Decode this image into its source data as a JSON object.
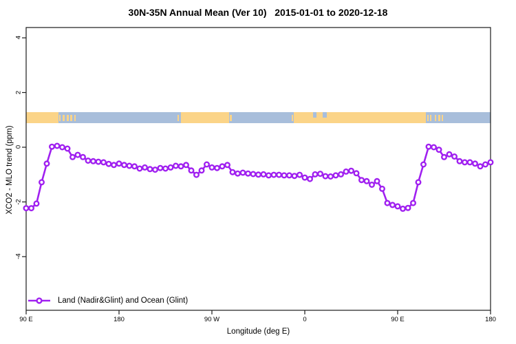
{
  "title": "30N-35N Annual Mean (Ver 10)   2015-01-01 to 2020-12-18",
  "axes": {
    "x_label": "Longitude (deg E)",
    "y_label": "XCO2 - MLO trend (ppm)"
  },
  "legend": {
    "label": "Land (Nadir&Glint) and Ocean (Glint)"
  },
  "colors": {
    "series": "#A020F0",
    "marker_fill": "#ffffff",
    "land": "#FBD488",
    "ocean": "#A8BEDB",
    "axis": "#1a1a1a",
    "text": "#000000"
  },
  "chart_data": {
    "type": "line",
    "title": "30N-35N Annual Mean (Ver 10)   2015-01-01 to 2020-12-18",
    "xlabel": "Longitude (deg E)",
    "ylabel": "XCO2 - MLO trend (ppm)",
    "x_range": [
      90,
      540
    ],
    "ylim": [
      -5.95,
      4.4
    ],
    "x_tick_deg": [
      90,
      180,
      270,
      360,
      450,
      540
    ],
    "x_tick_labels": [
      "90 E",
      "180",
      "90 W",
      "0",
      "90 E",
      "180"
    ],
    "y_tick_values": [
      4,
      2,
      0,
      -2,
      -4
    ],
    "y_tick_labels": [
      "4",
      "2",
      "0",
      "-2",
      "-4"
    ],
    "grid": false,
    "legend_position": "bottom-left-inside",
    "series": [
      {
        "name": "Land (Nadir&Glint) and Ocean (Glint)",
        "x_deg_east_continuous": [
          90,
          95,
          100,
          105,
          110,
          115,
          120,
          125,
          130,
          135,
          140,
          145,
          150,
          155,
          160,
          165,
          170,
          175,
          180,
          185,
          190,
          195,
          200,
          205,
          210,
          215,
          220,
          225,
          230,
          235,
          240,
          245,
          250,
          255,
          260,
          265,
          270,
          275,
          280,
          285,
          290,
          295,
          300,
          305,
          310,
          315,
          320,
          325,
          330,
          335,
          340,
          345,
          350,
          355,
          360,
          365,
          370,
          375,
          380,
          385,
          390,
          395,
          400,
          405,
          410,
          415,
          420,
          425,
          430,
          435,
          440,
          445,
          450,
          455,
          460,
          465,
          470,
          475,
          480,
          485,
          490,
          495,
          500,
          505,
          510,
          515,
          520,
          525,
          530,
          535,
          540
        ],
        "values_ppm": [
          -2.23,
          -2.23,
          -2.06,
          -1.28,
          -0.6,
          0.02,
          0.05,
          0.0,
          -0.05,
          -0.36,
          -0.28,
          -0.36,
          -0.49,
          -0.51,
          -0.53,
          -0.55,
          -0.61,
          -0.65,
          -0.6,
          -0.65,
          -0.68,
          -0.7,
          -0.78,
          -0.74,
          -0.8,
          -0.82,
          -0.76,
          -0.78,
          -0.74,
          -0.68,
          -0.7,
          -0.65,
          -0.85,
          -1.01,
          -0.85,
          -0.63,
          -0.74,
          -0.76,
          -0.7,
          -0.65,
          -0.91,
          -0.96,
          -0.93,
          -0.96,
          -0.98,
          -1.0,
          -0.99,
          -1.03,
          -1.01,
          -1.01,
          -1.03,
          -1.03,
          -1.05,
          -1.01,
          -1.11,
          -1.16,
          -0.99,
          -0.97,
          -1.06,
          -1.07,
          -1.03,
          -0.99,
          -0.89,
          -0.86,
          -0.95,
          -1.2,
          -1.24,
          -1.37,
          -1.24,
          -1.52,
          -2.04,
          -2.11,
          -2.16,
          -2.25,
          -2.22,
          -2.04,
          -1.28,
          -0.63,
          0.02,
          0.0,
          -0.09,
          -0.36,
          -0.26,
          -0.34,
          -0.51,
          -0.55,
          -0.55,
          -0.6,
          -0.7,
          -0.63,
          -0.55
        ]
      }
    ],
    "map_band": {
      "description": "land/ocean strip drawn across plot near y = 0.9 to 1.3 ppm",
      "y_range_ppm": [
        0.88,
        1.28
      ],
      "land_segments_deg": [
        [
          90,
          121
        ],
        [
          240,
          286.5
        ],
        [
          349.5,
          477
        ]
      ],
      "island_dots_deg": [
        [
          122,
          123.5
        ],
        [
          125.5,
          127.5
        ],
        [
          129,
          131
        ],
        [
          132.5,
          134.5
        ],
        [
          136.5,
          138
        ],
        [
          236.8,
          238.2
        ],
        [
          287.5,
          289
        ],
        [
          347,
          348.5
        ],
        [
          478.5,
          480
        ],
        [
          481.5,
          482.8
        ],
        [
          486,
          487.5
        ],
        [
          489,
          491
        ],
        [
          492.5,
          494
        ]
      ],
      "ocean_notches_deg": [
        [
          368,
          371.5
        ],
        [
          377.5,
          381
        ]
      ]
    }
  }
}
